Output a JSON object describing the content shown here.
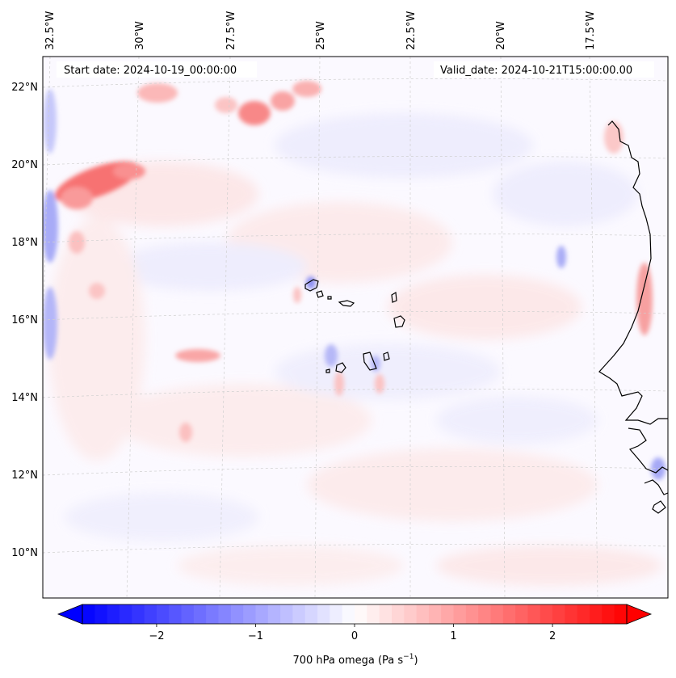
{
  "header": {
    "start_date": "Start date: 2024-10-19_00:00:00",
    "valid_date": "Valid_date: 2024-10-21T15:00:00.00"
  },
  "map": {
    "projection": "lambert-conformal",
    "region": "Cabo Verde / West Africa coast",
    "lon_labels": [
      "32.5°W",
      "30°W",
      "27.5°W",
      "25°W",
      "22.5°W",
      "20°W",
      "17.5°W"
    ],
    "lat_labels": [
      "22°N",
      "20°N",
      "18°N",
      "16°N",
      "14°N",
      "12°N",
      "10°N"
    ],
    "gridlines": true,
    "field": "700 hPa omega",
    "colormap": "bwr",
    "background_color": "#fbf9ff"
  },
  "colorbar": {
    "ticks": [
      "−2",
      "−1",
      "0",
      "1",
      "2"
    ],
    "tick_values": [
      -2,
      -1,
      0,
      1,
      2
    ],
    "range": [
      -2.75,
      2.75
    ],
    "extend": "both",
    "label_main": "700 hPa omega (Pa s",
    "label_sup": "−1",
    "label_end": ")"
  }
}
